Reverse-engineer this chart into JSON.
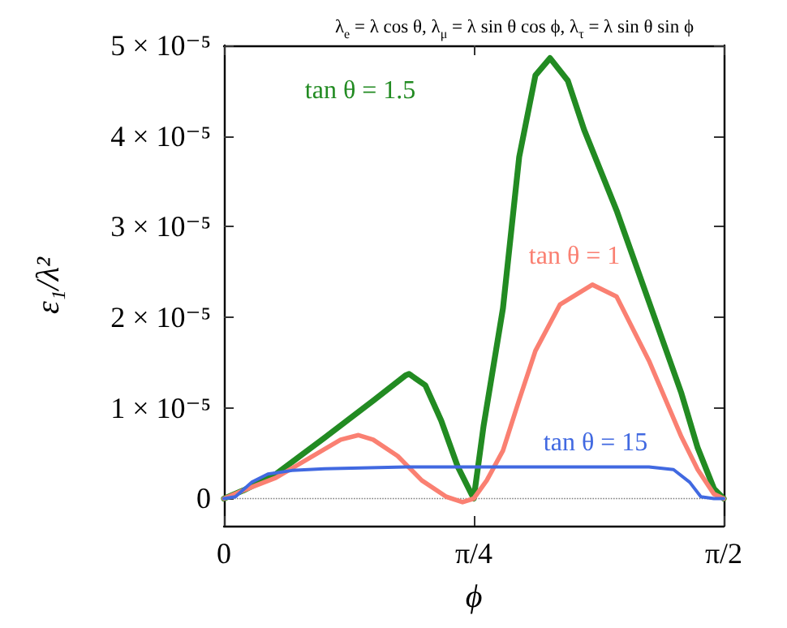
{
  "chart_data": {
    "type": "line",
    "title": "λ$_{e}$ = λ cos θ, λ$_{μ}$ = λ sin θ cos ϕ, λ$_{τ}$ = λ sin θ sin ϕ",
    "xlabel": "ϕ",
    "ylabel": "ε₁/λ²",
    "xlim": [
      0,
      1.5708
    ],
    "ylim": [
      -3e-06,
      5e-05
    ],
    "xticks": [
      0,
      {
        "value": 0.7854,
        "label": "π/4"
      },
      {
        "value": 1.5708,
        "label": "π/2"
      }
    ],
    "yticks": [
      0,
      {
        "value": 1e-05,
        "label": "1 × 10⁻⁵"
      },
      {
        "value": 2e-05,
        "label": "2 × 10⁻⁵"
      },
      {
        "value": 3e-05,
        "label": "3 × 10⁻⁵"
      },
      {
        "value": 4e-05,
        "label": "4 × 10⁻⁵"
      },
      {
        "value": 5e-05,
        "label": "5 × 10⁻⁵"
      }
    ],
    "marker": "none",
    "line_style": "solid",
    "ref_lines": [
      {
        "axis": "y",
        "value": 0,
        "color": "#808080",
        "line_style": "dotted"
      }
    ],
    "series": [
      {
        "name": "tan θ = 1.5",
        "color": "#228b22",
        "x": [
          0,
          0.061,
          0.163,
          0.316,
          0.469,
          0.571,
          0.582,
          0.633,
          0.683,
          0.734,
          0.785,
          0.816,
          0.877,
          0.928,
          0.979,
          1.025,
          1.081,
          1.132,
          1.234,
          1.336,
          1.438,
          1.489,
          1.54,
          1.5708
        ],
        "values": [
          0,
          9e-07,
          2.7e-06,
          6.7e-06,
          1.08e-05,
          1.36e-05,
          1.375e-05,
          1.25e-05,
          8.6e-06,
          3.6e-06,
          0,
          8e-06,
          2.1e-05,
          3.77e-05,
          4.67e-05,
          4.86e-05,
          4.61e-05,
          4.07e-05,
          3.18e-05,
          2.17e-05,
          1.16e-05,
          5.6e-06,
          1.1e-06,
          0
        ]
      },
      {
        "name": "tan θ = 1",
        "color": "#fa8072",
        "x": [
          0,
          0.061,
          0.163,
          0.265,
          0.367,
          0.423,
          0.469,
          0.546,
          0.622,
          0.699,
          0.75,
          0.785,
          0.826,
          0.877,
          0.928,
          0.979,
          1.056,
          1.158,
          1.234,
          1.336,
          1.438,
          1.489,
          1.54,
          1.5708
        ],
        "values": [
          0,
          9e-07,
          2.3e-06,
          4.4e-06,
          6.5e-06,
          7e-06,
          6.5e-06,
          4.7e-06,
          2e-06,
          2e-07,
          -4e-07,
          0,
          2e-06,
          5.3e-06,
          1.09e-05,
          1.63e-05,
          2.14e-05,
          2.36e-05,
          2.23e-05,
          1.52e-05,
          6.8e-06,
          3.2e-06,
          5e-07,
          0
        ]
      },
      {
        "name": "tan θ = 15",
        "color": "#4169e1",
        "x": [
          0,
          0.036,
          0.087,
          0.138,
          0.214,
          0.316,
          0.571,
          0.826,
          1.081,
          1.336,
          1.413,
          1.464,
          1.499,
          1.54,
          1.5708
        ],
        "values": [
          0,
          2e-07,
          1.8e-06,
          2.7e-06,
          3.1e-06,
          3.3e-06,
          3.5e-06,
          3.5e-06,
          3.5e-06,
          3.5e-06,
          3.2e-06,
          1.8e-06,
          2e-07,
          0,
          0
        ]
      }
    ]
  }
}
